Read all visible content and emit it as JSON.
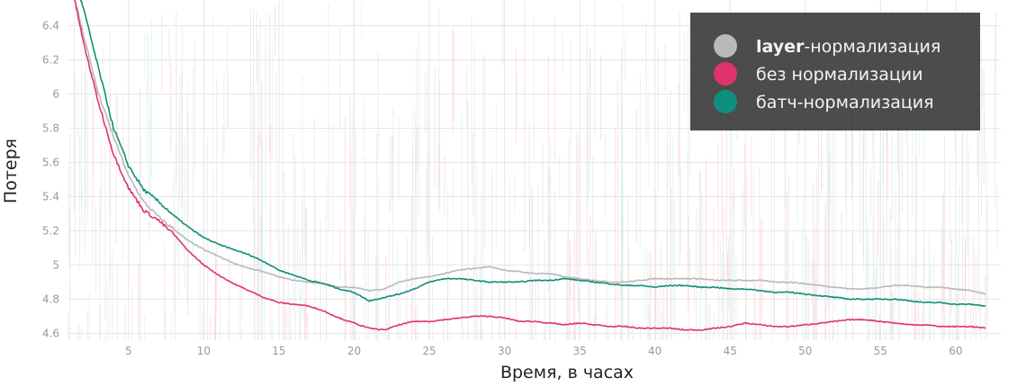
{
  "chart_data": {
    "type": "line",
    "title": "",
    "xlabel": "Время,  в часах",
    "ylabel": "Потеря",
    "xlim": [
      1,
      63
    ],
    "ylim": [
      4.56,
      6.55
    ],
    "x_ticks": [
      5,
      10,
      15,
      20,
      25,
      30,
      35,
      40,
      45,
      50,
      55,
      60
    ],
    "y_ticks": [
      4.6,
      4.8,
      5,
      5.2,
      5.4,
      5.6,
      5.8,
      6,
      6.2,
      6.4
    ],
    "y_tick_labels": [
      "4.6",
      "4.8",
      "5",
      "5.2",
      "5.4",
      "5.6",
      "5.8",
      "6",
      "6.2",
      "6.4"
    ],
    "grid": true,
    "legend_position": "top-right",
    "raw_noise_background": true,
    "series": [
      {
        "name": "layer-нормализация",
        "legend_bold_part": "layer",
        "legend_rest": "-нормализация",
        "color": "#b9b9b9",
        "x": [
          1.3,
          2,
          3,
          4,
          5,
          6,
          7,
          8,
          9,
          10,
          11,
          12,
          13,
          14,
          15,
          16,
          17,
          18,
          19,
          20,
          21,
          22,
          23,
          24,
          25,
          26,
          27,
          28,
          29,
          30,
          31,
          32,
          33,
          34,
          35,
          36,
          37,
          38,
          39,
          40,
          41,
          42,
          43,
          44,
          45,
          46,
          47,
          48,
          49,
          50,
          51,
          52,
          53,
          54,
          55,
          56,
          57,
          58,
          59,
          60,
          61,
          62
        ],
        "values": [
          6.6,
          6.35,
          6.0,
          5.75,
          5.52,
          5.37,
          5.28,
          5.21,
          5.14,
          5.09,
          5.05,
          5.01,
          4.98,
          4.96,
          4.93,
          4.91,
          4.9,
          4.89,
          4.87,
          4.87,
          4.85,
          4.86,
          4.9,
          4.92,
          4.93,
          4.95,
          4.97,
          4.98,
          4.99,
          4.97,
          4.96,
          4.95,
          4.95,
          4.93,
          4.92,
          4.91,
          4.9,
          4.9,
          4.91,
          4.92,
          4.92,
          4.92,
          4.92,
          4.91,
          4.91,
          4.91,
          4.91,
          4.9,
          4.9,
          4.89,
          4.88,
          4.87,
          4.86,
          4.86,
          4.87,
          4.88,
          4.88,
          4.87,
          4.87,
          4.86,
          4.85,
          4.83
        ]
      },
      {
        "name": "без нормализации",
        "color": "#e0336e",
        "x": [
          1.3,
          2,
          3,
          4,
          5,
          6,
          7,
          8,
          9,
          10,
          11,
          12,
          13,
          14,
          15,
          16,
          17,
          18,
          19,
          20,
          21,
          22,
          23,
          24,
          25,
          26,
          27,
          28,
          29,
          30,
          31,
          32,
          33,
          34,
          35,
          36,
          37,
          38,
          39,
          40,
          41,
          42,
          43,
          44,
          45,
          46,
          47,
          48,
          49,
          50,
          51,
          52,
          53,
          54,
          55,
          56,
          57,
          58,
          59,
          60,
          61,
          62
        ],
        "values": [
          6.6,
          6.3,
          5.95,
          5.65,
          5.45,
          5.32,
          5.26,
          5.18,
          5.08,
          5.0,
          4.94,
          4.89,
          4.85,
          4.81,
          4.78,
          4.77,
          4.76,
          4.73,
          4.69,
          4.66,
          4.63,
          4.62,
          4.65,
          4.67,
          4.67,
          4.68,
          4.69,
          4.7,
          4.7,
          4.69,
          4.67,
          4.67,
          4.66,
          4.65,
          4.66,
          4.65,
          4.64,
          4.64,
          4.63,
          4.63,
          4.63,
          4.62,
          4.62,
          4.63,
          4.64,
          4.66,
          4.65,
          4.64,
          4.64,
          4.65,
          4.66,
          4.67,
          4.68,
          4.68,
          4.67,
          4.66,
          4.65,
          4.65,
          4.64,
          4.64,
          4.64,
          4.63
        ]
      },
      {
        "name": "батч-нормализация",
        "color": "#0f8f7d",
        "x": [
          1.3,
          2,
          3,
          4,
          5,
          6,
          7,
          8,
          9,
          10,
          11,
          12,
          13,
          14,
          15,
          16,
          17,
          18,
          19,
          20,
          21,
          22,
          23,
          24,
          25,
          26,
          27,
          28,
          29,
          30,
          31,
          32,
          33,
          34,
          35,
          36,
          37,
          38,
          39,
          40,
          41,
          42,
          43,
          44,
          45,
          46,
          47,
          48,
          49,
          50,
          51,
          52,
          53,
          54,
          55,
          56,
          57,
          58,
          59,
          60,
          61,
          62
        ],
        "values": [
          6.7,
          6.5,
          6.15,
          5.8,
          5.58,
          5.44,
          5.37,
          5.29,
          5.22,
          5.16,
          5.12,
          5.09,
          5.06,
          5.02,
          4.97,
          4.94,
          4.91,
          4.89,
          4.86,
          4.84,
          4.79,
          4.81,
          4.83,
          4.86,
          4.9,
          4.92,
          4.92,
          4.91,
          4.9,
          4.9,
          4.9,
          4.91,
          4.91,
          4.92,
          4.91,
          4.9,
          4.89,
          4.88,
          4.88,
          4.87,
          4.88,
          4.88,
          4.87,
          4.87,
          4.86,
          4.86,
          4.85,
          4.84,
          4.84,
          4.83,
          4.82,
          4.81,
          4.8,
          4.8,
          4.8,
          4.8,
          4.79,
          4.78,
          4.78,
          4.77,
          4.77,
          4.76
        ]
      }
    ]
  }
}
